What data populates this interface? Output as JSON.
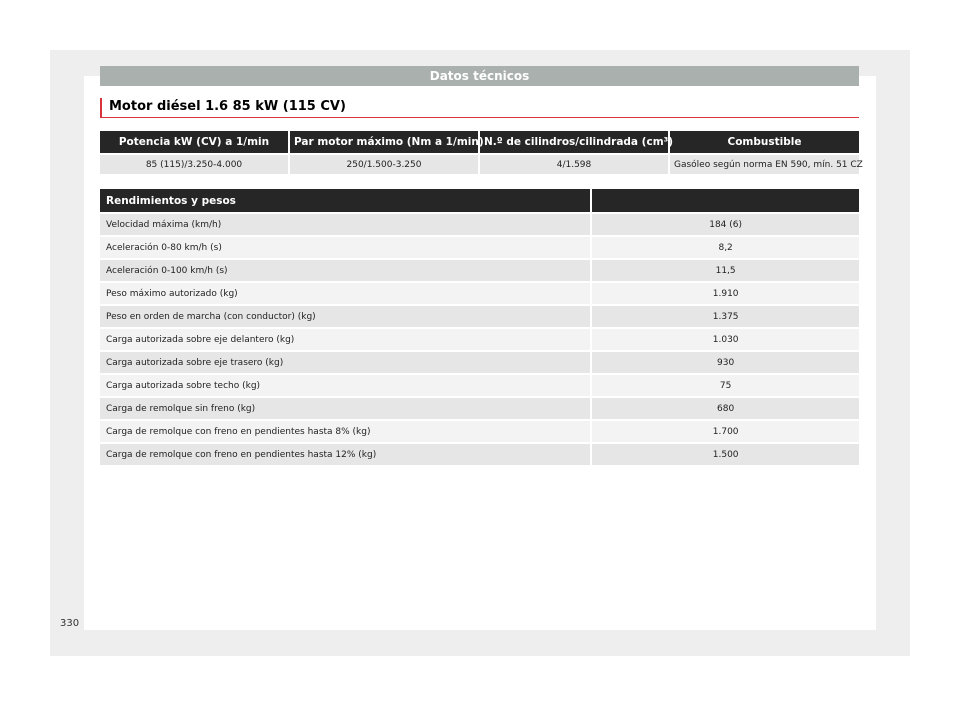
{
  "header": {
    "title": "Datos técnicos"
  },
  "section": {
    "title": "Motor diésel 1.6 85 kW (115 CV)"
  },
  "engine_table": {
    "headers": [
      "Potencia kW (CV) a 1/min",
      "Par motor máximo (Nm a 1/min)",
      "N.º de cilindros/cilindrada (cm³)",
      "Combustible"
    ],
    "row": [
      "85 (115)/3.250-4.000",
      "250/1.500-3.250",
      "4/1.598",
      "Gasóleo según norma EN 590, mín. 51 CZ"
    ]
  },
  "performance_table": {
    "header": "Rendimientos y pesos",
    "rows": [
      {
        "label": "Velocidad máxima (km/h)",
        "value": "184 (6)"
      },
      {
        "label": "Aceleración 0-80 km/h (s)",
        "value": "8,2"
      },
      {
        "label": "Aceleración 0-100 km/h (s)",
        "value": "11,5"
      },
      {
        "label": "Peso máximo autorizado (kg)",
        "value": "1.910"
      },
      {
        "label": "Peso en orden de marcha (con conductor) (kg)",
        "value": "1.375"
      },
      {
        "label": "Carga autorizada sobre eje delantero (kg)",
        "value": "1.030"
      },
      {
        "label": "Carga autorizada sobre eje trasero (kg)",
        "value": "930"
      },
      {
        "label": "Carga autorizada sobre techo (kg)",
        "value": "75"
      },
      {
        "label": "Carga de remolque sin freno (kg)",
        "value": "680"
      },
      {
        "label": "Carga de remolque con freno en pendientes hasta 8% (kg)",
        "value": "1.700"
      },
      {
        "label": "Carga de remolque con freno en pendientes hasta 12% (kg)",
        "value": "1.500"
      }
    ]
  },
  "footer": {
    "page_number": "330"
  },
  "colors": {
    "accent": "#d9343b",
    "header_band": "#a9b0ae",
    "table_header": "#262626"
  }
}
